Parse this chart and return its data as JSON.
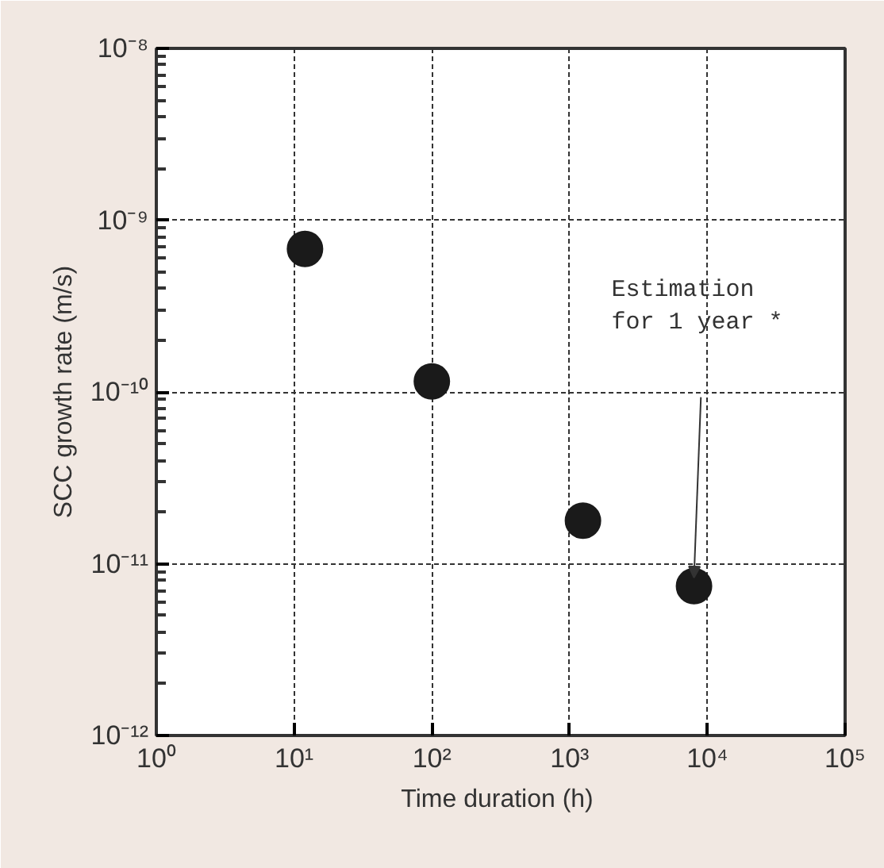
{
  "chart_data": {
    "type": "scatter",
    "xlabel": "Time duration  (h)",
    "ylabel": "SCC growth rate (m/s)",
    "log": "xy",
    "grid": true,
    "marker": "circle",
    "x": [
      12,
      100,
      1250,
      8000
    ],
    "series": [
      {
        "color": "#1a1a1a",
        "values": [
          6.8e-10,
          1.15e-10,
          1.78e-11,
          7.4e-12
        ]
      }
    ],
    "xlim": [
      1,
      100000
    ],
    "ylim": [
      1e-12,
      1e-08
    ],
    "xticks": [
      {
        "value": 1,
        "label": "10⁰"
      },
      {
        "value": 10,
        "label": "10¹"
      },
      {
        "value": 100,
        "label": "10²"
      },
      {
        "value": 1000,
        "label": "10³"
      },
      {
        "value": 10000,
        "label": "10⁴"
      },
      {
        "value": 100000,
        "label": "10⁵"
      }
    ],
    "yticks": [
      {
        "value": 1e-12,
        "label": "10⁻¹²"
      },
      {
        "value": 1e-11,
        "label": "10⁻¹¹"
      },
      {
        "value": 1e-10,
        "label": "10⁻¹⁰"
      },
      {
        "value": 1e-09,
        "label": "10⁻⁹"
      },
      {
        "value": 1e-08,
        "label": "10⁻⁸"
      }
    ],
    "annotations": [
      "Estimation\nfor 1 year *"
    ]
  }
}
